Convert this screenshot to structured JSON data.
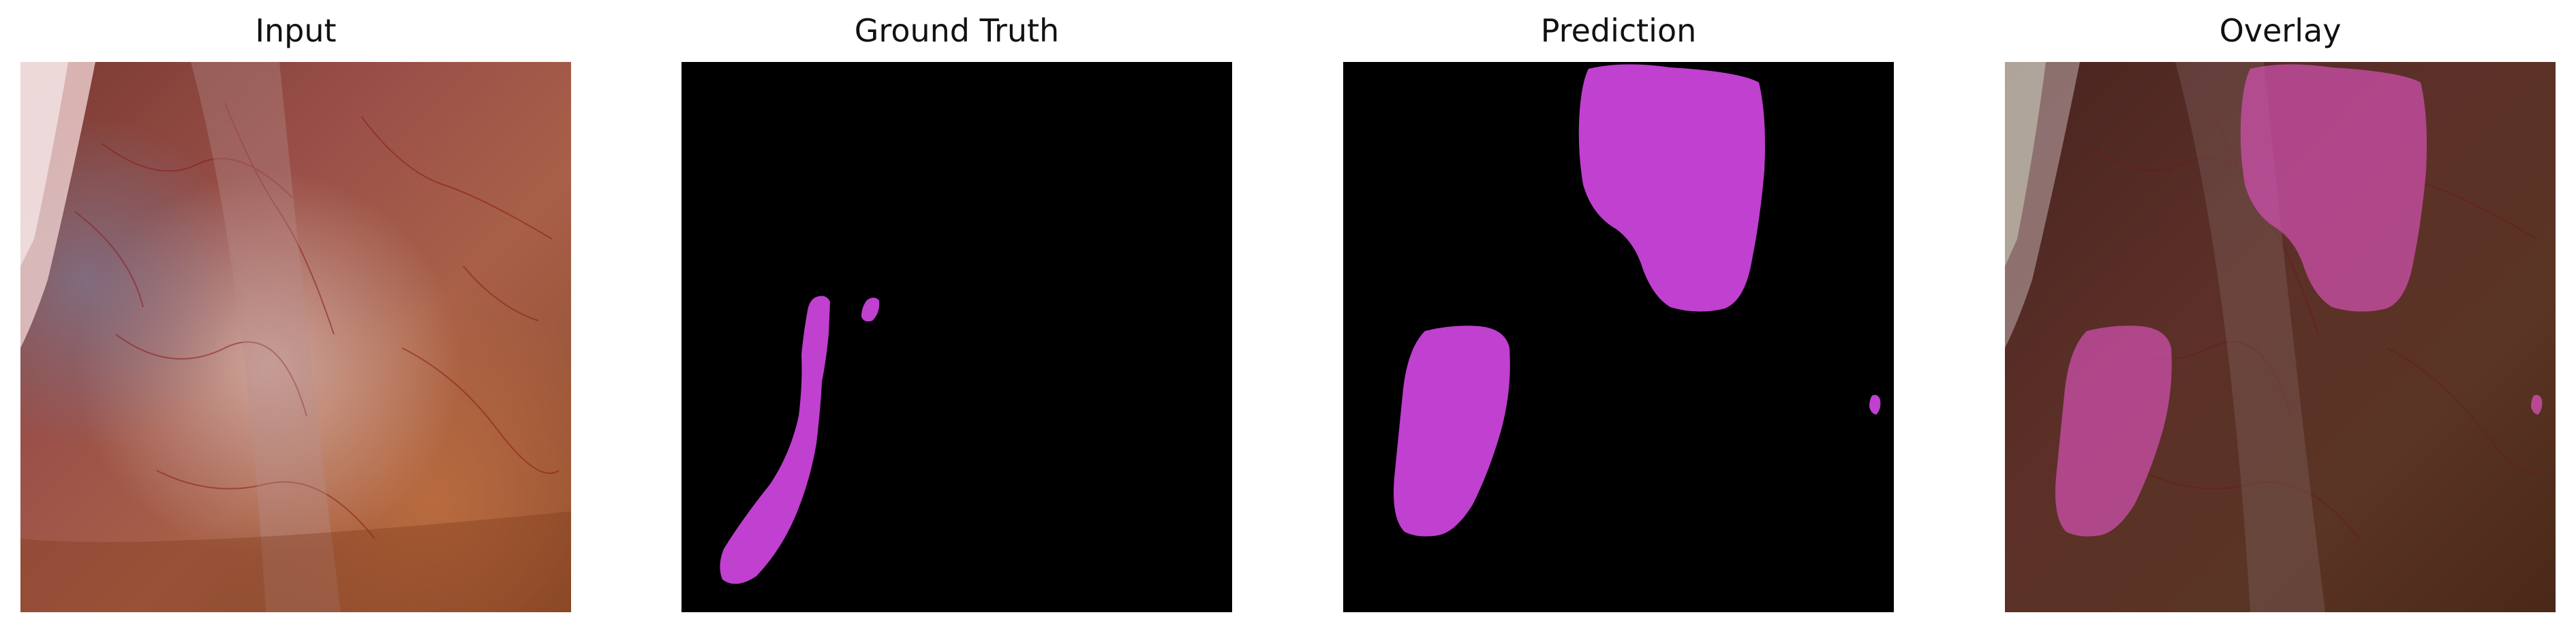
{
  "panels": [
    {
      "id": "input",
      "title": "Input"
    },
    {
      "id": "ground_truth",
      "title": "Ground Truth"
    },
    {
      "id": "prediction",
      "title": "Prediction"
    },
    {
      "id": "overlay",
      "title": "Overlay"
    }
  ],
  "colors": {
    "mask": "#c040d0",
    "background": "#000000",
    "tissue_dark": "#6a2a22",
    "tissue_mid": "#9a4a38",
    "tissue_light": "#c88a6a"
  }
}
